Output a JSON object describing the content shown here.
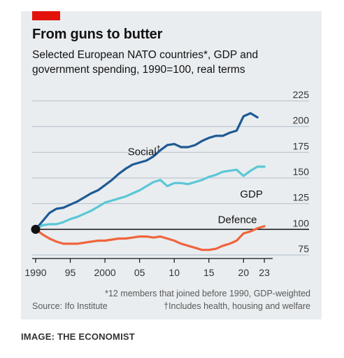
{
  "header": {
    "title": "From guns to butter",
    "subtitle": "Selected European NATO countries*, GDP and government spending, 1990=100, real terms"
  },
  "footer": {
    "note_left": "*12 members that joined before 1990, GDP-weighted",
    "source": "Source: Ifo Institute",
    "note_right": "†Includes health, housing and welfare"
  },
  "credit": "IMAGE: THE ECONOMIST",
  "colors": {
    "background": "#e9edf0",
    "accent_red": "#e3120b",
    "social": "#1f5a94",
    "gdp": "#5bc7d6",
    "defence": "#f0643c",
    "baseline": "#121212"
  },
  "chart_data": {
    "type": "line",
    "title": "From guns to butter",
    "subtitle": "Selected European NATO countries*, GDP and government spending, 1990=100, real terms",
    "xlim": [
      1989.5,
      2024
    ],
    "ylim": [
      75,
      225
    ],
    "y_ticks": [
      75,
      100,
      125,
      150,
      175,
      200,
      225
    ],
    "y_tick_labels": [
      "75",
      "100",
      "125",
      "150",
      "175",
      "200",
      "225"
    ],
    "x_ticks": [
      1990,
      1995,
      2000,
      2005,
      2010,
      2015,
      2020,
      2023
    ],
    "x_tick_labels": [
      "1990",
      "95",
      "2000",
      "05",
      "10",
      "15",
      "20",
      "23"
    ],
    "grid": true,
    "axis_side_y": "right",
    "series": [
      {
        "name": "Social†",
        "x": [
          1990,
          1991,
          1992,
          1993,
          1994,
          1995,
          1996,
          1997,
          1998,
          1999,
          2000,
          2001,
          2002,
          2003,
          2004,
          2005,
          2006,
          2007,
          2008,
          2009,
          2010,
          2011,
          2012,
          2013,
          2014,
          2015,
          2016,
          2017,
          2018,
          2019,
          2020,
          2021,
          2022
        ],
        "y": [
          100,
          108,
          116,
          120,
          121,
          124,
          127,
          131,
          135,
          138,
          143,
          148,
          154,
          159,
          163,
          165,
          167,
          171,
          177,
          182,
          183,
          180,
          180,
          182,
          186,
          189,
          191,
          191,
          194,
          196,
          210,
          213,
          209
        ]
      },
      {
        "name": "GDP",
        "x": [
          1990,
          1991,
          1992,
          1993,
          1994,
          1995,
          1996,
          1997,
          1998,
          1999,
          2000,
          2001,
          2002,
          2003,
          2004,
          2005,
          2006,
          2007,
          2008,
          2009,
          2010,
          2011,
          2012,
          2013,
          2014,
          2015,
          2016,
          2017,
          2018,
          2019,
          2020,
          2021,
          2022,
          2023
        ],
        "y": [
          100,
          104,
          105,
          105,
          107,
          110,
          112,
          115,
          118,
          122,
          126,
          128,
          130,
          132,
          135,
          138,
          142,
          146,
          148,
          142,
          145,
          145,
          144,
          146,
          148,
          151,
          153,
          156,
          157,
          158,
          152,
          157,
          161,
          161
        ]
      },
      {
        "name": "Defence",
        "x": [
          1990,
          1991,
          1992,
          1993,
          1994,
          1995,
          1996,
          1997,
          1998,
          1999,
          2000,
          2001,
          2002,
          2003,
          2004,
          2005,
          2006,
          2007,
          2008,
          2009,
          2010,
          2011,
          2012,
          2013,
          2014,
          2015,
          2016,
          2017,
          2018,
          2019,
          2020,
          2021,
          2022,
          2023
        ],
        "y": [
          100,
          95,
          91,
          88,
          86,
          86,
          86,
          87,
          88,
          89,
          89,
          90,
          91,
          91,
          92,
          93,
          93,
          92,
          93,
          91,
          89,
          86,
          84,
          82,
          80,
          80,
          81,
          84,
          86,
          89,
          96,
          98,
          101,
          103
        ]
      }
    ],
    "baseline": {
      "y": 100,
      "label": ""
    },
    "series_labels": [
      "Social",
      "GDP",
      "Defence"
    ]
  }
}
